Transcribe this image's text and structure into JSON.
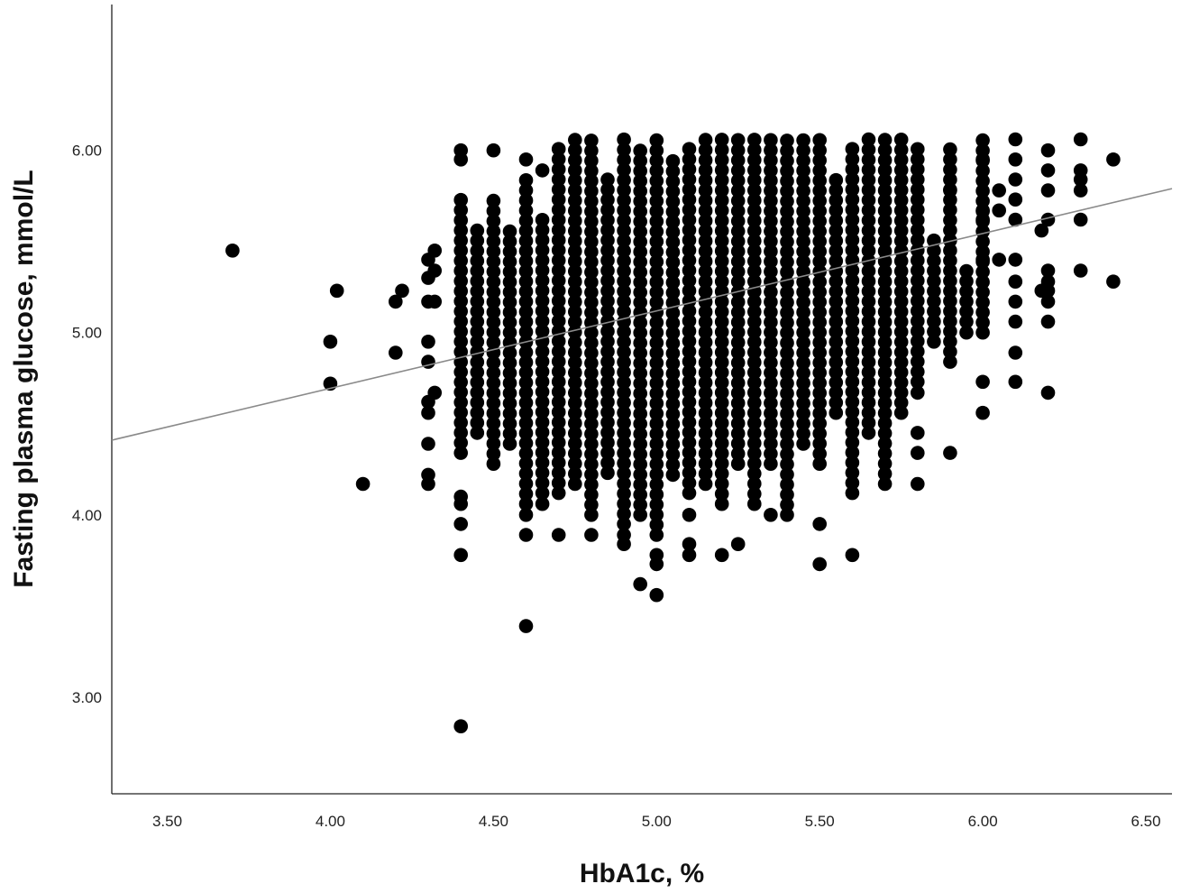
{
  "chart_data": {
    "type": "scatter",
    "title": "",
    "xlabel": "HbA1c, %",
    "ylabel": "Fasting plasma glucose, mmol/L",
    "xlim": [
      3.33,
      6.58
    ],
    "ylim": [
      2.47,
      6.8
    ],
    "x_ticks": [
      "3.50",
      "4.00",
      "4.50",
      "5.00",
      "5.50",
      "6.00",
      "6.50"
    ],
    "x_tick_values": [
      3.5,
      4.0,
      4.5,
      5.0,
      5.5,
      6.0,
      6.5
    ],
    "y_ticks": [
      "3.00",
      "4.00",
      "5.00",
      "6.00"
    ],
    "y_tick_values": [
      3.0,
      4.0,
      5.0,
      6.0
    ],
    "grid": false,
    "legend": "none",
    "colors": {
      "points": "#000000",
      "fit_line": "#8a8a8a",
      "axes": "#222222"
    },
    "fit_line": {
      "type": "linear",
      "x": [
        3.33,
        6.58
      ],
      "y": [
        4.41,
        5.79
      ]
    },
    "series": [
      {
        "points": [
          [
            3.7,
            5.45
          ],
          [
            4.0,
            4.95
          ],
          [
            4.0,
            4.72
          ],
          [
            4.02,
            5.23
          ],
          [
            4.1,
            4.17
          ],
          [
            4.2,
            5.17
          ],
          [
            4.2,
            4.89
          ],
          [
            4.22,
            5.23
          ],
          [
            4.3,
            5.4
          ],
          [
            4.3,
            5.3
          ],
          [
            4.3,
            5.17
          ],
          [
            4.3,
            4.95
          ],
          [
            4.3,
            4.84
          ],
          [
            4.3,
            4.62
          ],
          [
            4.3,
            4.56
          ],
          [
            4.3,
            4.39
          ],
          [
            4.3,
            4.22
          ],
          [
            4.3,
            4.17
          ],
          [
            4.32,
            5.45
          ],
          [
            4.32,
            5.34
          ],
          [
            4.32,
            5.17
          ],
          [
            4.32,
            4.67
          ],
          [
            4.4,
            6.0
          ],
          [
            4.4,
            5.95
          ],
          [
            4.4,
            4.1
          ],
          [
            4.4,
            4.06
          ],
          [
            4.4,
            3.95
          ],
          [
            4.4,
            3.78
          ],
          [
            4.4,
            2.84
          ],
          [
            4.5,
            6.0
          ],
          [
            4.6,
            5.95
          ],
          [
            4.6,
            4.0
          ],
          [
            4.6,
            3.89
          ],
          [
            4.6,
            3.39
          ],
          [
            4.65,
            5.89
          ],
          [
            4.65,
            4.06
          ],
          [
            4.7,
            3.89
          ],
          [
            4.8,
            3.89
          ],
          [
            4.9,
            3.89
          ],
          [
            4.9,
            3.84
          ],
          [
            4.95,
            3.62
          ],
          [
            5.0,
            3.78
          ],
          [
            5.0,
            3.73
          ],
          [
            5.0,
            3.56
          ],
          [
            5.1,
            4.0
          ],
          [
            5.1,
            3.84
          ],
          [
            5.1,
            3.78
          ],
          [
            5.2,
            3.78
          ],
          [
            5.25,
            3.84
          ],
          [
            5.35,
            4.0
          ],
          [
            5.5,
            3.95
          ],
          [
            5.5,
            3.73
          ],
          [
            5.6,
            3.78
          ],
          [
            5.8,
            4.67
          ],
          [
            5.8,
            4.45
          ],
          [
            5.8,
            4.34
          ],
          [
            5.8,
            4.17
          ],
          [
            5.9,
            5.78
          ],
          [
            5.9,
            4.34
          ],
          [
            5.95,
            5.0
          ],
          [
            6.0,
            5.95
          ],
          [
            6.0,
            5.67
          ],
          [
            6.0,
            5.62
          ],
          [
            6.0,
            5.4
          ],
          [
            6.0,
            4.73
          ],
          [
            6.0,
            4.56
          ],
          [
            6.05,
            5.78
          ],
          [
            6.05,
            5.67
          ],
          [
            6.05,
            5.4
          ],
          [
            6.1,
            6.06
          ],
          [
            6.1,
            5.95
          ],
          [
            6.1,
            5.84
          ],
          [
            6.1,
            5.73
          ],
          [
            6.1,
            5.62
          ],
          [
            6.1,
            5.4
          ],
          [
            6.1,
            5.28
          ],
          [
            6.1,
            5.17
          ],
          [
            6.1,
            5.06
          ],
          [
            6.1,
            4.89
          ],
          [
            6.1,
            4.73
          ],
          [
            6.18,
            5.56
          ],
          [
            6.18,
            5.23
          ],
          [
            6.2,
            6.0
          ],
          [
            6.2,
            5.89
          ],
          [
            6.2,
            5.78
          ],
          [
            6.2,
            5.62
          ],
          [
            6.2,
            5.34
          ],
          [
            6.2,
            5.28
          ],
          [
            6.2,
            5.23
          ],
          [
            6.2,
            5.17
          ],
          [
            6.2,
            5.06
          ],
          [
            6.2,
            4.67
          ],
          [
            6.3,
            6.06
          ],
          [
            6.3,
            5.89
          ],
          [
            6.3,
            5.84
          ],
          [
            6.3,
            5.78
          ],
          [
            6.3,
            5.62
          ],
          [
            6.3,
            5.34
          ],
          [
            6.4,
            5.95
          ],
          [
            6.4,
            5.28
          ]
        ],
        "columns": [
          {
            "x": 4.4,
            "from": 4.34,
            "to": 5.78
          },
          {
            "x": 4.45,
            "from": 4.45,
            "to": 5.56
          },
          {
            "x": 4.5,
            "from": 4.28,
            "to": 5.73
          },
          {
            "x": 4.55,
            "from": 4.39,
            "to": 5.56
          },
          {
            "x": 4.6,
            "from": 4.06,
            "to": 5.84
          },
          {
            "x": 4.65,
            "from": 4.12,
            "to": 5.62
          },
          {
            "x": 4.7,
            "from": 4.12,
            "to": 6.06
          },
          {
            "x": 4.75,
            "from": 4.17,
            "to": 6.06
          },
          {
            "x": 4.8,
            "from": 4.0,
            "to": 6.06
          },
          {
            "x": 4.85,
            "from": 4.23,
            "to": 5.84
          },
          {
            "x": 4.9,
            "from": 3.95,
            "to": 6.06
          },
          {
            "x": 4.95,
            "from": 4.0,
            "to": 6.0
          },
          {
            "x": 5.0,
            "from": 3.89,
            "to": 6.06
          },
          {
            "x": 5.05,
            "from": 4.22,
            "to": 5.95
          },
          {
            "x": 5.1,
            "from": 4.12,
            "to": 6.06
          },
          {
            "x": 5.15,
            "from": 4.17,
            "to": 6.06
          },
          {
            "x": 5.2,
            "from": 4.06,
            "to": 6.06
          },
          {
            "x": 5.25,
            "from": 4.28,
            "to": 6.06
          },
          {
            "x": 5.3,
            "from": 4.06,
            "to": 6.06
          },
          {
            "x": 5.35,
            "from": 4.28,
            "to": 6.06
          },
          {
            "x": 5.4,
            "from": 4.0,
            "to": 6.06
          },
          {
            "x": 5.45,
            "from": 4.39,
            "to": 6.06
          },
          {
            "x": 5.5,
            "from": 4.28,
            "to": 6.06
          },
          {
            "x": 5.55,
            "from": 4.56,
            "to": 5.89
          },
          {
            "x": 5.6,
            "from": 4.12,
            "to": 6.06
          },
          {
            "x": 5.65,
            "from": 4.45,
            "to": 6.06
          },
          {
            "x": 5.7,
            "from": 4.17,
            "to": 6.06
          },
          {
            "x": 5.75,
            "from": 4.56,
            "to": 6.06
          },
          {
            "x": 5.8,
            "from": 4.73,
            "to": 6.06
          },
          {
            "x": 5.85,
            "from": 4.95,
            "to": 5.56
          },
          {
            "x": 5.9,
            "from": 4.84,
            "to": 6.06
          },
          {
            "x": 5.95,
            "from": 5.06,
            "to": 5.34
          },
          {
            "x": 6.0,
            "from": 5.0,
            "to": 6.06
          }
        ]
      }
    ]
  }
}
